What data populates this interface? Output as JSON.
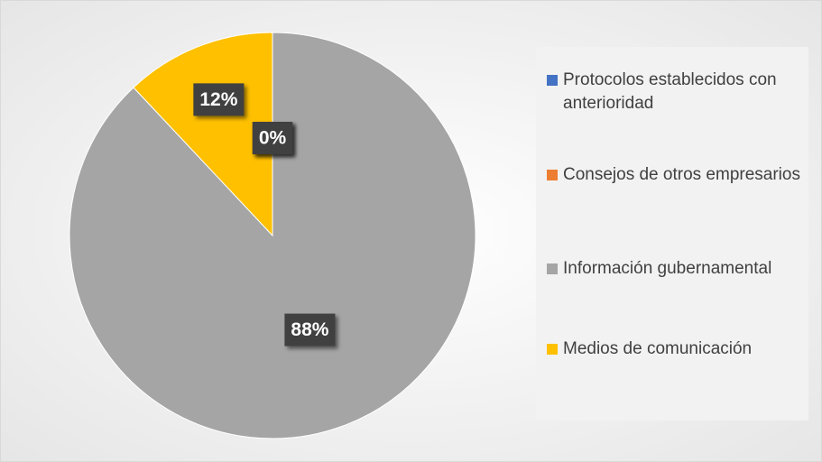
{
  "chart_data": {
    "type": "pie",
    "categories": [
      "Protocolos establecidos con anterioridad",
      "Consejos de otros empresarios",
      "Información gubernamental",
      "Medios de comunicación"
    ],
    "values": [
      0,
      0,
      88,
      12
    ],
    "value_labels": [
      "0%",
      "0%",
      "88%",
      "12%"
    ],
    "colors": [
      "#4472c4",
      "#ed7d31",
      "#a5a5a5",
      "#ffc000"
    ],
    "legend": "right"
  }
}
